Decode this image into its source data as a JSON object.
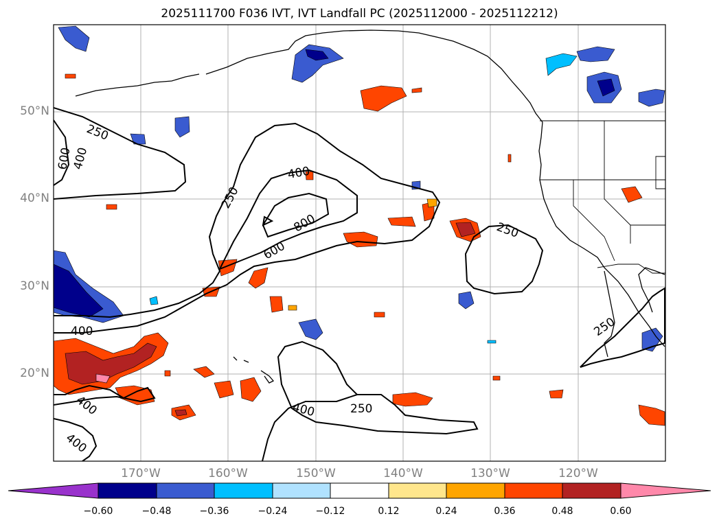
{
  "title": "2025111700 F036 IVT, IVT Landfall PC (2025112000 - 2025112212)",
  "lat_labels": [
    "50°N",
    "40°N",
    "30°N",
    "20°N"
  ],
  "lon_labels": [
    "170°W",
    "160°W",
    "150°W",
    "140°W",
    "130°W",
    "120°W"
  ],
  "contour_labels": [
    "250",
    "400",
    "600",
    "250",
    "400",
    "600",
    "800",
    "250",
    "400",
    "400",
    "400",
    "400",
    "250",
    "250"
  ],
  "colorbar": {
    "labels": [
      "−0.60",
      "−0.48",
      "−0.36",
      "−0.24",
      "−0.12",
      "0.12",
      "0.24",
      "0.36",
      "0.48",
      "0.60"
    ],
    "colors": [
      "#9932cc",
      "#00008b",
      "#3a5bd0",
      "#00bfff",
      "#b0e2ff",
      "#ffffff",
      "#ffe68c",
      "#ffa500",
      "#ff4500",
      "#b22222",
      "#ff88aa"
    ]
  }
}
